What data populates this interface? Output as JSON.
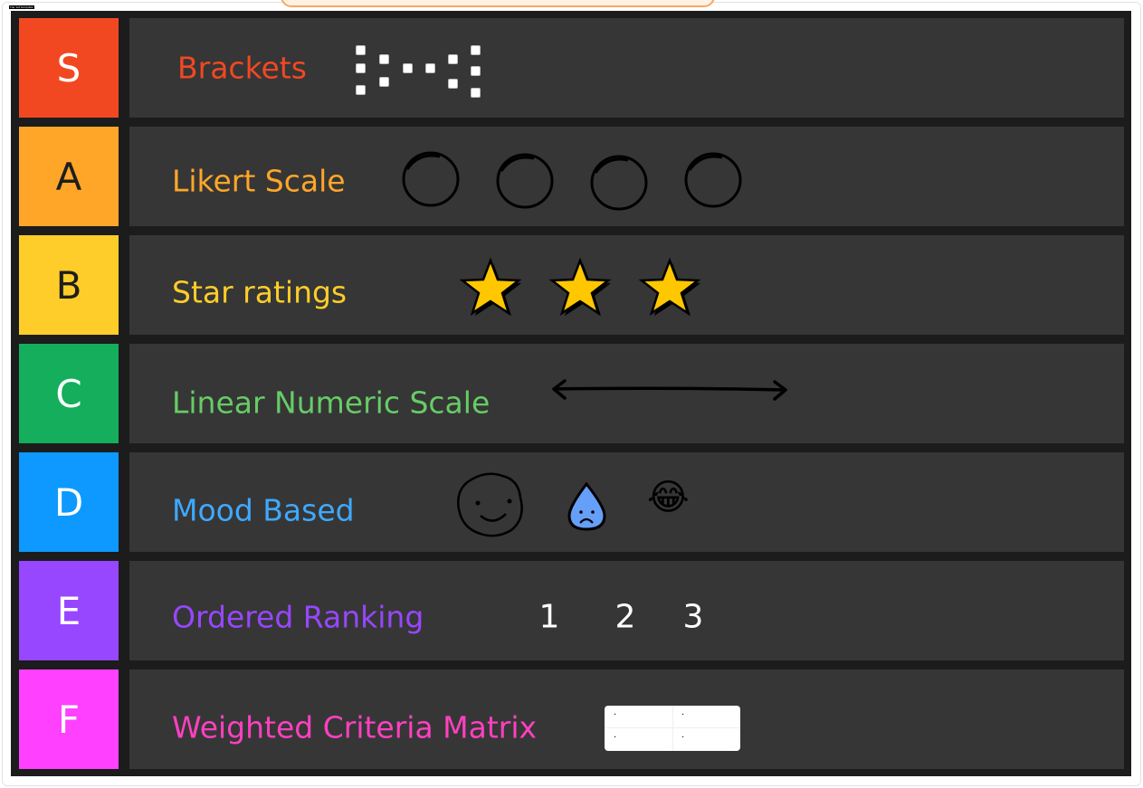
{
  "template_tag": "Tier list template",
  "tiers": [
    {
      "letter": "S",
      "color": "#f24822",
      "text_color": "#ffffff",
      "label": "Brackets",
      "label_color": "#f24822"
    },
    {
      "letter": "A",
      "color": "#ffa629",
      "text_color": "#1e1e1e",
      "label": "Likert Scale",
      "label_color": "#ffa629"
    },
    {
      "letter": "B",
      "color": "#ffcd29",
      "text_color": "#1e1e1e",
      "label": "Star ratings",
      "label_color": "#ffcd29"
    },
    {
      "letter": "C",
      "color": "#14ae5c",
      "text_color": "#ffffff",
      "label": "Linear Numeric Scale",
      "label_color": "#66cc66"
    },
    {
      "letter": "D",
      "color": "#0d99ff",
      "text_color": "#ffffff",
      "label": "Mood Based",
      "label_color": "#3fa9ff"
    },
    {
      "letter": "E",
      "color": "#9747ff",
      "text_color": "#ffffff",
      "label": "Ordered Ranking",
      "label_color": "#9747ff"
    },
    {
      "letter": "F",
      "color": "#ff40ff",
      "text_color": "#ffffff",
      "label": "Weighted Criteria Matrix",
      "label_color": "#ff40c0"
    }
  ],
  "ranking_numbers": [
    "1",
    "2",
    "3"
  ],
  "star_count": 3,
  "likert_circle_count": 4,
  "moods": [
    "smiley-blob-icon",
    "sad-droplet-icon",
    "tears-of-joy-emoji-icon"
  ],
  "matrix_cells": [
    ".",
    ".",
    ".",
    "."
  ]
}
